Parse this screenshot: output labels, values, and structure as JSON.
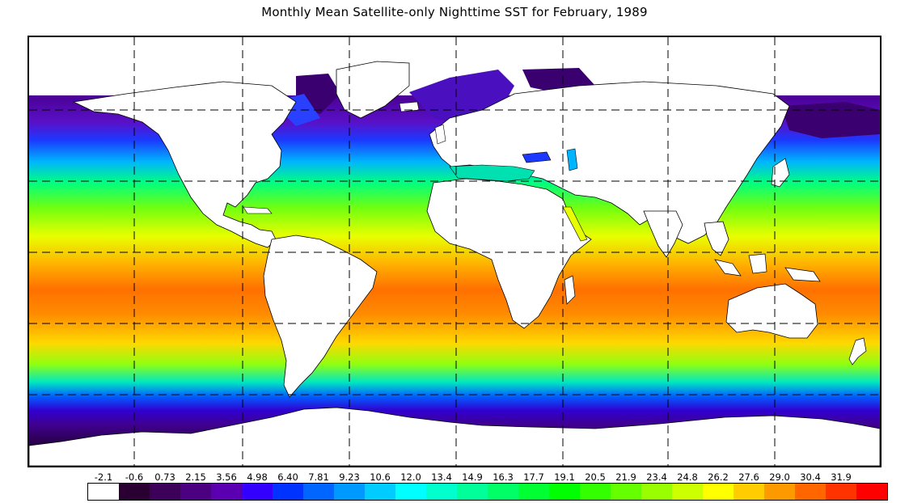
{
  "title": "Monthly Mean Satellite-only Nighttime SST for February, 1989",
  "legend": {
    "labels": [
      "-2.1",
      "-0.6",
      "0.73",
      "2.15",
      "3.56",
      "4.98",
      "6.40",
      "7.81",
      "9.23",
      "10.6",
      "12.0",
      "13.4",
      "14.9",
      "16.3",
      "17.7",
      "19.1",
      "20.5",
      "21.9",
      "23.4",
      "24.8",
      "26.2",
      "27.6",
      "29.0",
      "30.4",
      "31.9"
    ],
    "colors": [
      "#ffffff",
      "#2a0033",
      "#3c005a",
      "#4a0080",
      "#5a00b0",
      "#3300ff",
      "#0033ff",
      "#0066ff",
      "#0099ff",
      "#00ccff",
      "#00ffff",
      "#00ffcc",
      "#00ff99",
      "#00ff66",
      "#00ff33",
      "#00ff00",
      "#33ff00",
      "#66ff00",
      "#99ff00",
      "#ccff00",
      "#ffff00",
      "#ffcc00",
      "#ff9900",
      "#ff6600",
      "#ff3300",
      "#ff0000"
    ]
  },
  "map": {
    "grid_lines": "dashed",
    "ocean_bands": [
      {
        "lat_range": "65N-55N",
        "color": "#4a0090"
      },
      {
        "lat_range": "55N-45N",
        "color": "#1c38ff"
      },
      {
        "lat_range": "45N-35N",
        "color": "#00b4ff"
      },
      {
        "lat_range": "35N-25N",
        "color": "#00ff80"
      },
      {
        "lat_range": "25N-15N",
        "color": "#b8ff10"
      },
      {
        "lat_range": "15N-5N",
        "color": "#ffb400"
      },
      {
        "lat_range": "5N-15S",
        "color": "#ff7200"
      },
      {
        "lat_range": "15S-25S",
        "color": "#ffd400"
      },
      {
        "lat_range": "25S-35S",
        "color": "#90ff10"
      },
      {
        "lat_range": "35S-45S",
        "color": "#00e8c0"
      },
      {
        "lat_range": "45S-55S",
        "color": "#0060ff"
      },
      {
        "lat_range": "55S-65S",
        "color": "#400090"
      },
      {
        "lat_range": "65S-70S",
        "color": "#200030"
      }
    ]
  }
}
